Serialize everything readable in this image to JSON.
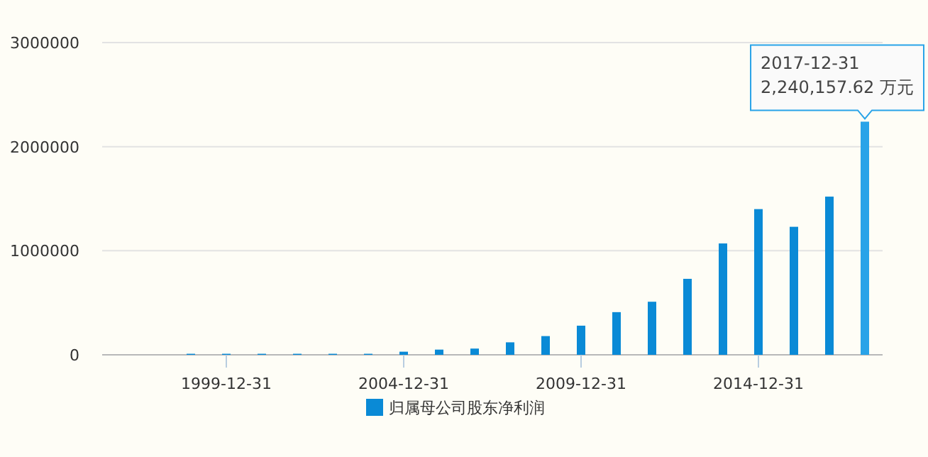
{
  "chart_data": {
    "type": "bar",
    "categories": [
      null,
      null,
      null,
      "1999-12-31",
      null,
      null,
      null,
      null,
      "2004-12-31",
      null,
      null,
      null,
      null,
      "2009-12-31",
      null,
      null,
      null,
      null,
      "2014-12-31",
      null,
      null,
      null
    ],
    "series": [
      {
        "name": "归属母公司股东净利润",
        "color": "#0a8ad6",
        "colors": [
          null,
          null,
          "#0a8ad6",
          "#0a8ad6",
          "#0a8ad6",
          "#0a8ad6",
          "#0a8ad6",
          "#0a8ad6",
          "#0a8ad6",
          "#0a8ad6",
          "#0a8ad6",
          "#0a8ad6",
          "#0a8ad6",
          "#0a8ad6",
          "#0a8ad6",
          "#0a8ad6",
          "#0a8ad6",
          "#0a8ad6",
          "#0a8ad6",
          "#0a8ad6",
          "#0a8ad6",
          "#29a3e8"
        ],
        "values": [
          null,
          null,
          10000,
          10000,
          10000,
          10000,
          10000,
          10000,
          30000,
          50000,
          60000,
          120000,
          180000,
          280000,
          410000,
          510000,
          730000,
          1070000,
          1400000,
          1230000,
          1520000,
          2240157.62
        ]
      }
    ],
    "ylim": [
      0,
      3000000
    ],
    "yticks": [
      0,
      1000000,
      2000000,
      3000000
    ],
    "grid": "y",
    "legend": "bottom",
    "annotations": [
      "2017-12-31\n2,240,157.62 万元"
    ]
  }
}
